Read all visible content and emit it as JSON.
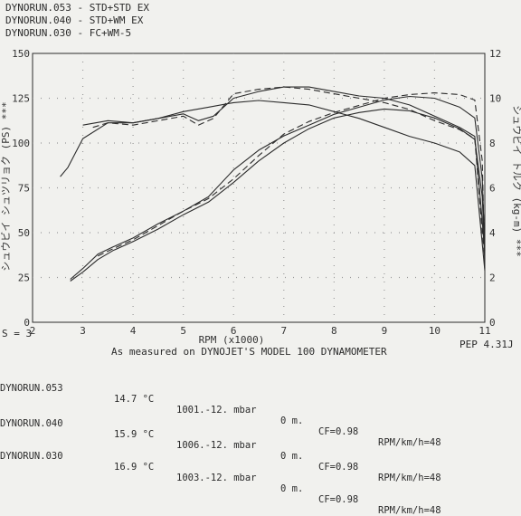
{
  "chart_data": {
    "type": "line",
    "legend": [
      "DYNORUN.053 - STD+STD EX",
      "DYNORUN.040 - STD+WM EX",
      "DYNORUN.030 - FC+WM-5"
    ],
    "xlabel": "RPM (x1000)",
    "xlim": [
      2,
      11
    ],
    "xticks": [
      "2",
      "3",
      "4",
      "5",
      "6",
      "7",
      "8",
      "9",
      "10",
      "11"
    ],
    "ylabel_left": "シュウビイ シュツリョク (PS) ***",
    "ylim_left": [
      0,
      150
    ],
    "yticks_left": [
      "0",
      "25",
      "50",
      "75",
      "100",
      "125",
      "150"
    ],
    "ylabel_right": "シュウビイ トルク (kg-m) ***",
    "ylim_right": [
      0,
      12
    ],
    "yticks_right": [
      "0",
      "2",
      "4",
      "6",
      "8",
      "10",
      "12"
    ],
    "grid": true,
    "series": [
      {
        "name": "DYNORUN.053",
        "axis": "left",
        "x": [
          2.75,
          3.0,
          3.3,
          3.6,
          4.0,
          4.5,
          5.0,
          5.5,
          6.0,
          6.5,
          7.0,
          7.5,
          8.0,
          8.5,
          9.0,
          9.5,
          10.0,
          10.5,
          10.8,
          10.95,
          11.0
        ],
        "values": [
          23,
          28,
          35,
          40,
          45,
          52,
          60,
          67,
          78,
          90,
          100,
          108,
          114,
          117,
          119,
          118,
          114,
          108,
          102,
          70,
          35
        ]
      },
      {
        "name": "DYNORUN.040",
        "axis": "left",
        "x": [
          2.75,
          3.0,
          3.3,
          3.6,
          4.0,
          4.5,
          5.0,
          5.5,
          6.0,
          6.5,
          7.0,
          7.5,
          8.0,
          8.5,
          9.0,
          9.5,
          10.0,
          10.5,
          10.8,
          10.95,
          11.0
        ],
        "values": [
          24,
          30,
          38,
          42,
          47,
          55,
          62,
          70,
          85,
          96,
          104,
          110,
          116,
          120,
          124,
          126,
          125,
          120,
          114,
          80,
          40
        ]
      },
      {
        "name": "DYNORUN.030",
        "axis": "left",
        "x": [
          3.3,
          3.6,
          4.0,
          4.5,
          5.0,
          5.5,
          6.0,
          6.5,
          7.0,
          7.5,
          8.0,
          8.5,
          9.0,
          9.5,
          10.0,
          10.5,
          10.8,
          10.95,
          11.0
        ],
        "values": [
          37,
          41,
          46,
          54,
          62,
          69,
          80,
          93,
          105,
          112,
          117,
          121,
          125,
          127,
          128,
          127,
          124,
          90,
          30
        ]
      },
      {
        "name": "DYNORUN.053",
        "axis": "right",
        "x": [
          2.55,
          2.7,
          3.0,
          3.5,
          4.0,
          4.5,
          5.0,
          5.5,
          6.0,
          6.5,
          7.0,
          7.5,
          8.0,
          8.5,
          9.0,
          9.5,
          10.0,
          10.5,
          10.8,
          10.95,
          11.0
        ],
        "values": [
          6.5,
          6.9,
          8.2,
          8.9,
          8.9,
          9.1,
          9.4,
          9.6,
          9.8,
          9.9,
          9.8,
          9.7,
          9.4,
          9.1,
          8.7,
          8.3,
          8.0,
          7.6,
          7.0,
          3.5,
          2.3
        ]
      },
      {
        "name": "DYNORUN.040",
        "axis": "right",
        "x": [
          3.0,
          3.5,
          4.0,
          4.5,
          5.0,
          5.3,
          5.6,
          6.0,
          6.5,
          7.0,
          7.5,
          8.0,
          8.5,
          9.0,
          9.5,
          10.0,
          10.5,
          10.8,
          10.95,
          11.0
        ],
        "values": [
          8.8,
          9.0,
          8.9,
          9.1,
          9.3,
          9.0,
          9.2,
          10.0,
          10.3,
          10.5,
          10.5,
          10.3,
          10.1,
          10.0,
          9.7,
          9.2,
          8.7,
          8.3,
          4.5,
          3.0
        ]
      },
      {
        "name": "DYNORUN.030",
        "axis": "right",
        "x": [
          3.2,
          3.5,
          4.0,
          4.5,
          5.0,
          5.3,
          5.6,
          6.0,
          6.5,
          7.0,
          7.5,
          8.0,
          8.5,
          9.0,
          9.5,
          10.0,
          10.5,
          10.8,
          10.95,
          11.0
        ],
        "values": [
          8.7,
          8.9,
          8.8,
          9.0,
          9.2,
          8.8,
          9.1,
          10.2,
          10.4,
          10.5,
          10.4,
          10.2,
          10.0,
          9.8,
          9.5,
          9.0,
          8.6,
          8.2,
          4.0,
          2.8
        ]
      }
    ]
  },
  "footer": {
    "s_label": "S = 3",
    "model_text": "As measured on DYNOJET'S MODEL 100 DYNAMOMETER",
    "pep_text": "PEP 4.31J"
  },
  "runs": [
    {
      "name": "DYNORUN.053",
      "temp": "14.7 °C",
      "pressure": "1001.-12. mbar",
      "alt": "0 m.",
      "cf": "CF=0.98",
      "ratio": "RPM/km/h=48"
    },
    {
      "name": "DYNORUN.040",
      "temp": "15.9 °C",
      "pressure": "1006.-12. mbar",
      "alt": "0 m.",
      "cf": "CF=0.98",
      "ratio": "RPM/km/h=48"
    },
    {
      "name": "DYNORUN.030",
      "temp": "16.9 °C",
      "pressure": "1003.-12. mbar",
      "alt": "0 m.",
      "cf": "CF=0.98",
      "ratio": "RPM/km/h=48"
    }
  ],
  "colors": {
    "ink": "#2b2b2b",
    "paper": "#f1f1ee",
    "grid": "#9a9a9a"
  }
}
